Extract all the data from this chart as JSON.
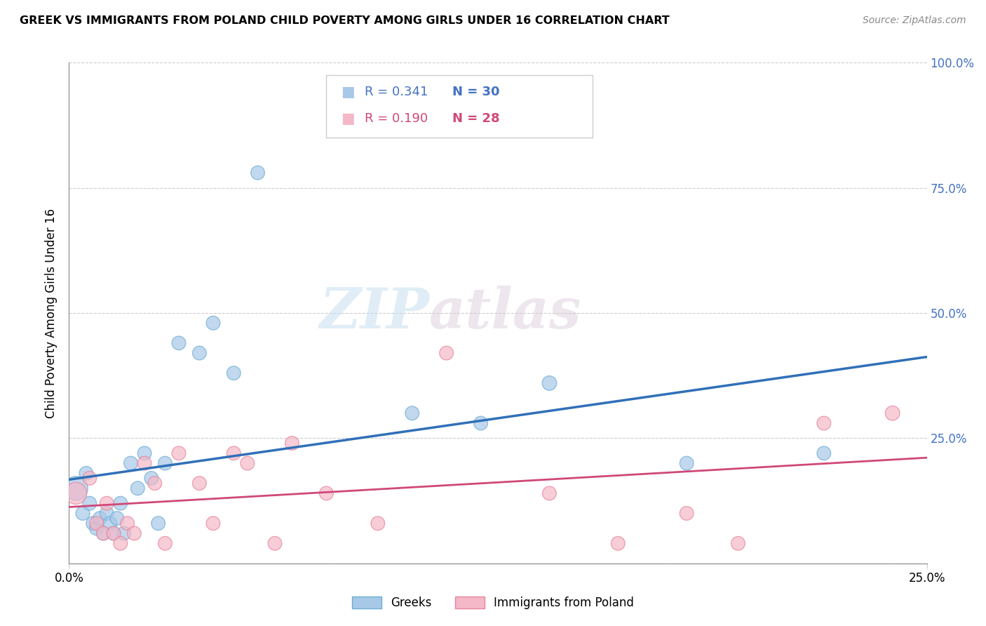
{
  "title": "GREEK VS IMMIGRANTS FROM POLAND CHILD POVERTY AMONG GIRLS UNDER 16 CORRELATION CHART",
  "source": "Source: ZipAtlas.com",
  "ylabel": "Child Poverty Among Girls Under 16",
  "xlim": [
    0.0,
    0.25
  ],
  "ylim": [
    0.0,
    1.0
  ],
  "ytick_vals": [
    0.0,
    0.25,
    0.5,
    0.75,
    1.0
  ],
  "ytick_labels": [
    "",
    "25.0%",
    "50.0%",
    "75.0%",
    "100.0%"
  ],
  "xtick_vals": [
    0.0,
    0.25
  ],
  "xtick_labels": [
    "0.0%",
    "25.0%"
  ],
  "watermark_zip": "ZIP",
  "watermark_atlas": "atlas",
  "legend_greek_R": "0.341",
  "legend_greek_N": "30",
  "legend_poland_R": "0.190",
  "legend_poland_N": "28",
  "greek_color": "#a8c8e8",
  "greek_edge_color": "#6baed6",
  "poland_color": "#f4b8c8",
  "poland_edge_color": "#e8849a",
  "greek_line_color": "#3070b8",
  "poland_line_color": "#d04878",
  "greek_x": [
    0.002,
    0.004,
    0.005,
    0.006,
    0.007,
    0.008,
    0.009,
    0.01,
    0.011,
    0.012,
    0.013,
    0.014,
    0.015,
    0.016,
    0.018,
    0.02,
    0.022,
    0.024,
    0.026,
    0.028,
    0.032,
    0.038,
    0.042,
    0.048,
    0.055,
    0.1,
    0.12,
    0.14,
    0.18,
    0.22
  ],
  "greek_y": [
    0.15,
    0.1,
    0.18,
    0.12,
    0.08,
    0.07,
    0.09,
    0.06,
    0.1,
    0.08,
    0.06,
    0.09,
    0.12,
    0.06,
    0.2,
    0.15,
    0.22,
    0.17,
    0.08,
    0.2,
    0.44,
    0.42,
    0.48,
    0.38,
    0.78,
    0.3,
    0.28,
    0.36,
    0.2,
    0.22
  ],
  "greek_size": [
    600,
    200,
    200,
    200,
    200,
    200,
    200,
    200,
    200,
    200,
    200,
    200,
    200,
    200,
    200,
    200,
    200,
    200,
    200,
    200,
    200,
    200,
    200,
    200,
    200,
    200,
    200,
    220,
    200,
    200
  ],
  "poland_x": [
    0.002,
    0.006,
    0.008,
    0.01,
    0.011,
    0.013,
    0.015,
    0.017,
    0.019,
    0.022,
    0.025,
    0.028,
    0.032,
    0.038,
    0.042,
    0.048,
    0.052,
    0.06,
    0.065,
    0.075,
    0.09,
    0.11,
    0.14,
    0.16,
    0.18,
    0.195,
    0.22,
    0.24
  ],
  "poland_y": [
    0.14,
    0.17,
    0.08,
    0.06,
    0.12,
    0.06,
    0.04,
    0.08,
    0.06,
    0.2,
    0.16,
    0.04,
    0.22,
    0.16,
    0.08,
    0.22,
    0.2,
    0.04,
    0.24,
    0.14,
    0.08,
    0.42,
    0.14,
    0.04,
    0.1,
    0.04,
    0.28,
    0.3
  ],
  "poland_size": [
    500,
    200,
    200,
    200,
    200,
    200,
    200,
    200,
    200,
    200,
    200,
    200,
    200,
    200,
    200,
    200,
    200,
    200,
    200,
    200,
    200,
    200,
    200,
    200,
    200,
    200,
    200,
    220
  ]
}
